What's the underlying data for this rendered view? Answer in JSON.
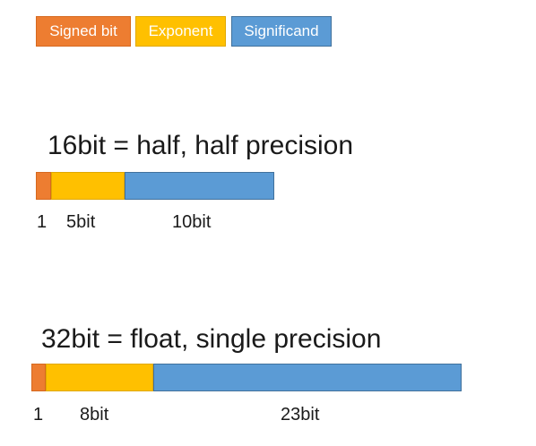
{
  "legend": {
    "sign_label": "Signed bit",
    "exponent_label": "Exponent",
    "significand_label": "Significand"
  },
  "colors": {
    "sign": "#ED7D31",
    "exponent": "#FFC000",
    "significand": "#5B9BD5",
    "sign_border": "#D6691F",
    "exponent_border": "#E0A800",
    "significand_border": "#41719C"
  },
  "formats": [
    {
      "title": "16bit = half, half precision",
      "sign_bits": 1,
      "exponent_bits": 5,
      "significand_bits": 10,
      "sign_label": "1",
      "exponent_label": "5bit",
      "significand_label": "10bit"
    },
    {
      "title": "32bit = float, single precision",
      "sign_bits": 1,
      "exponent_bits": 8,
      "significand_bits": 23,
      "sign_label": "1",
      "exponent_label": "8bit",
      "significand_label": "23bit"
    }
  ]
}
